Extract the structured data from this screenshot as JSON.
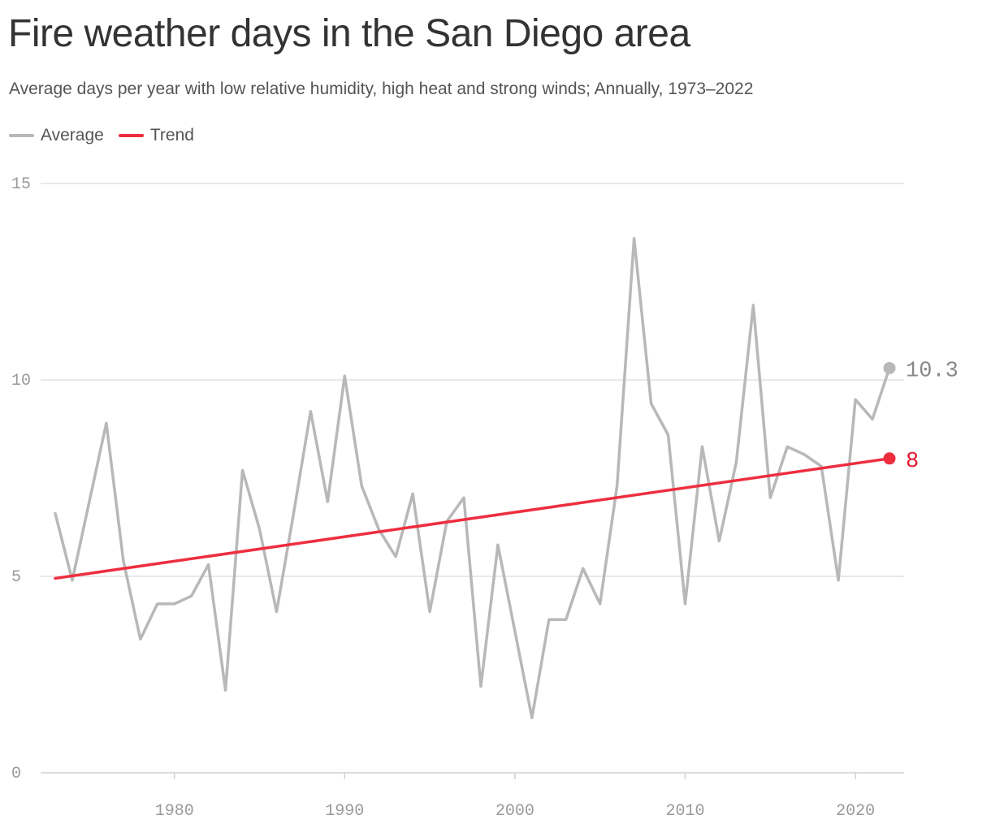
{
  "title": "Fire weather days in the San Diego area",
  "subtitle": "Average days per year with low relative humidity, high heat and strong winds; Annually, 1973–2022",
  "legend": [
    {
      "label": "Average",
      "color": "#b8b8b8"
    },
    {
      "label": "Trend",
      "color": "#ee2e3f"
    }
  ],
  "chart_data": {
    "type": "line",
    "xlim": [
      1973,
      2022
    ],
    "ylim": [
      0,
      15
    ],
    "y_ticks": [
      0,
      5,
      10,
      15
    ],
    "x_ticks": [
      1980,
      1990,
      2000,
      2010,
      2020
    ],
    "grid": true,
    "legend_position": "top-left",
    "series": [
      {
        "name": "Average",
        "color": "#b8b8b8",
        "x": [
          1973,
          1974,
          1975,
          1976,
          1977,
          1978,
          1979,
          1980,
          1981,
          1982,
          1983,
          1984,
          1985,
          1986,
          1987,
          1988,
          1989,
          1990,
          1991,
          1992,
          1993,
          1994,
          1995,
          1996,
          1997,
          1998,
          1999,
          2000,
          2001,
          2002,
          2003,
          2004,
          2005,
          2006,
          2007,
          2008,
          2009,
          2010,
          2011,
          2012,
          2013,
          2014,
          2015,
          2016,
          2017,
          2018,
          2019,
          2020,
          2021,
          2022
        ],
        "values": [
          6.6,
          4.9,
          6.9,
          8.9,
          5.4,
          3.4,
          4.3,
          4.3,
          4.5,
          5.3,
          2.1,
          7.7,
          6.2,
          4.1,
          6.6,
          9.2,
          6.9,
          10.1,
          7.3,
          6.2,
          5.5,
          7.1,
          4.1,
          6.4,
          7.0,
          2.2,
          5.8,
          3.6,
          1.4,
          3.9,
          3.9,
          5.2,
          4.3,
          7.3,
          13.6,
          9.4,
          8.6,
          4.3,
          8.3,
          5.9,
          7.9,
          11.9,
          7.0,
          8.3,
          8.1,
          7.8,
          4.9,
          9.5,
          9.0,
          10.3
        ],
        "end_label": "10.3"
      },
      {
        "name": "Trend",
        "color": "#ee2e3f",
        "x": [
          1973,
          2022
        ],
        "values": [
          4.95,
          8.0
        ],
        "end_label": "8"
      }
    ],
    "end_label_colors": [
      "#888888",
      "#e1132c"
    ]
  }
}
